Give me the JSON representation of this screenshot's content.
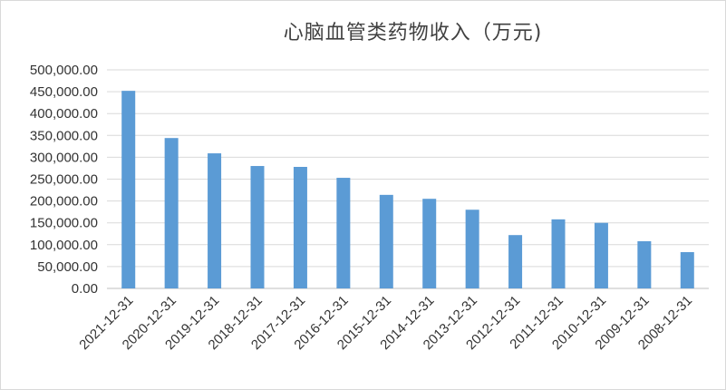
{
  "chart_data": {
    "type": "bar",
    "title": "心脑血管类药物收入（万元)",
    "xlabel": "",
    "ylabel": "",
    "categories": [
      "2021-12-31",
      "2020-12-31",
      "2019-12-31",
      "2018-12-31",
      "2017-12-31",
      "2016-12-31",
      "2015-12-31",
      "2014-12-31",
      "2013-12-31",
      "2012-12-31",
      "2011-12-31",
      "2010-12-31",
      "2009-12-31",
      "2008-12-31"
    ],
    "values": [
      452000,
      344000,
      309000,
      280000,
      278000,
      253000,
      214000,
      205000,
      180000,
      122000,
      158000,
      150000,
      108000,
      83000
    ],
    "ylim": [
      0,
      500000
    ],
    "yticks": [
      "0.00",
      "50,000.00",
      "100,000.00",
      "150,000.00",
      "200,000.00",
      "250,000.00",
      "300,000.00",
      "350,000.00",
      "400,000.00",
      "450,000.00",
      "500,000.00"
    ],
    "ytick_values": [
      0,
      50000,
      100000,
      150000,
      200000,
      250000,
      300000,
      350000,
      400000,
      450000,
      500000
    ],
    "grid": true,
    "legend": "none",
    "bar_color": "#5b9bd5"
  }
}
